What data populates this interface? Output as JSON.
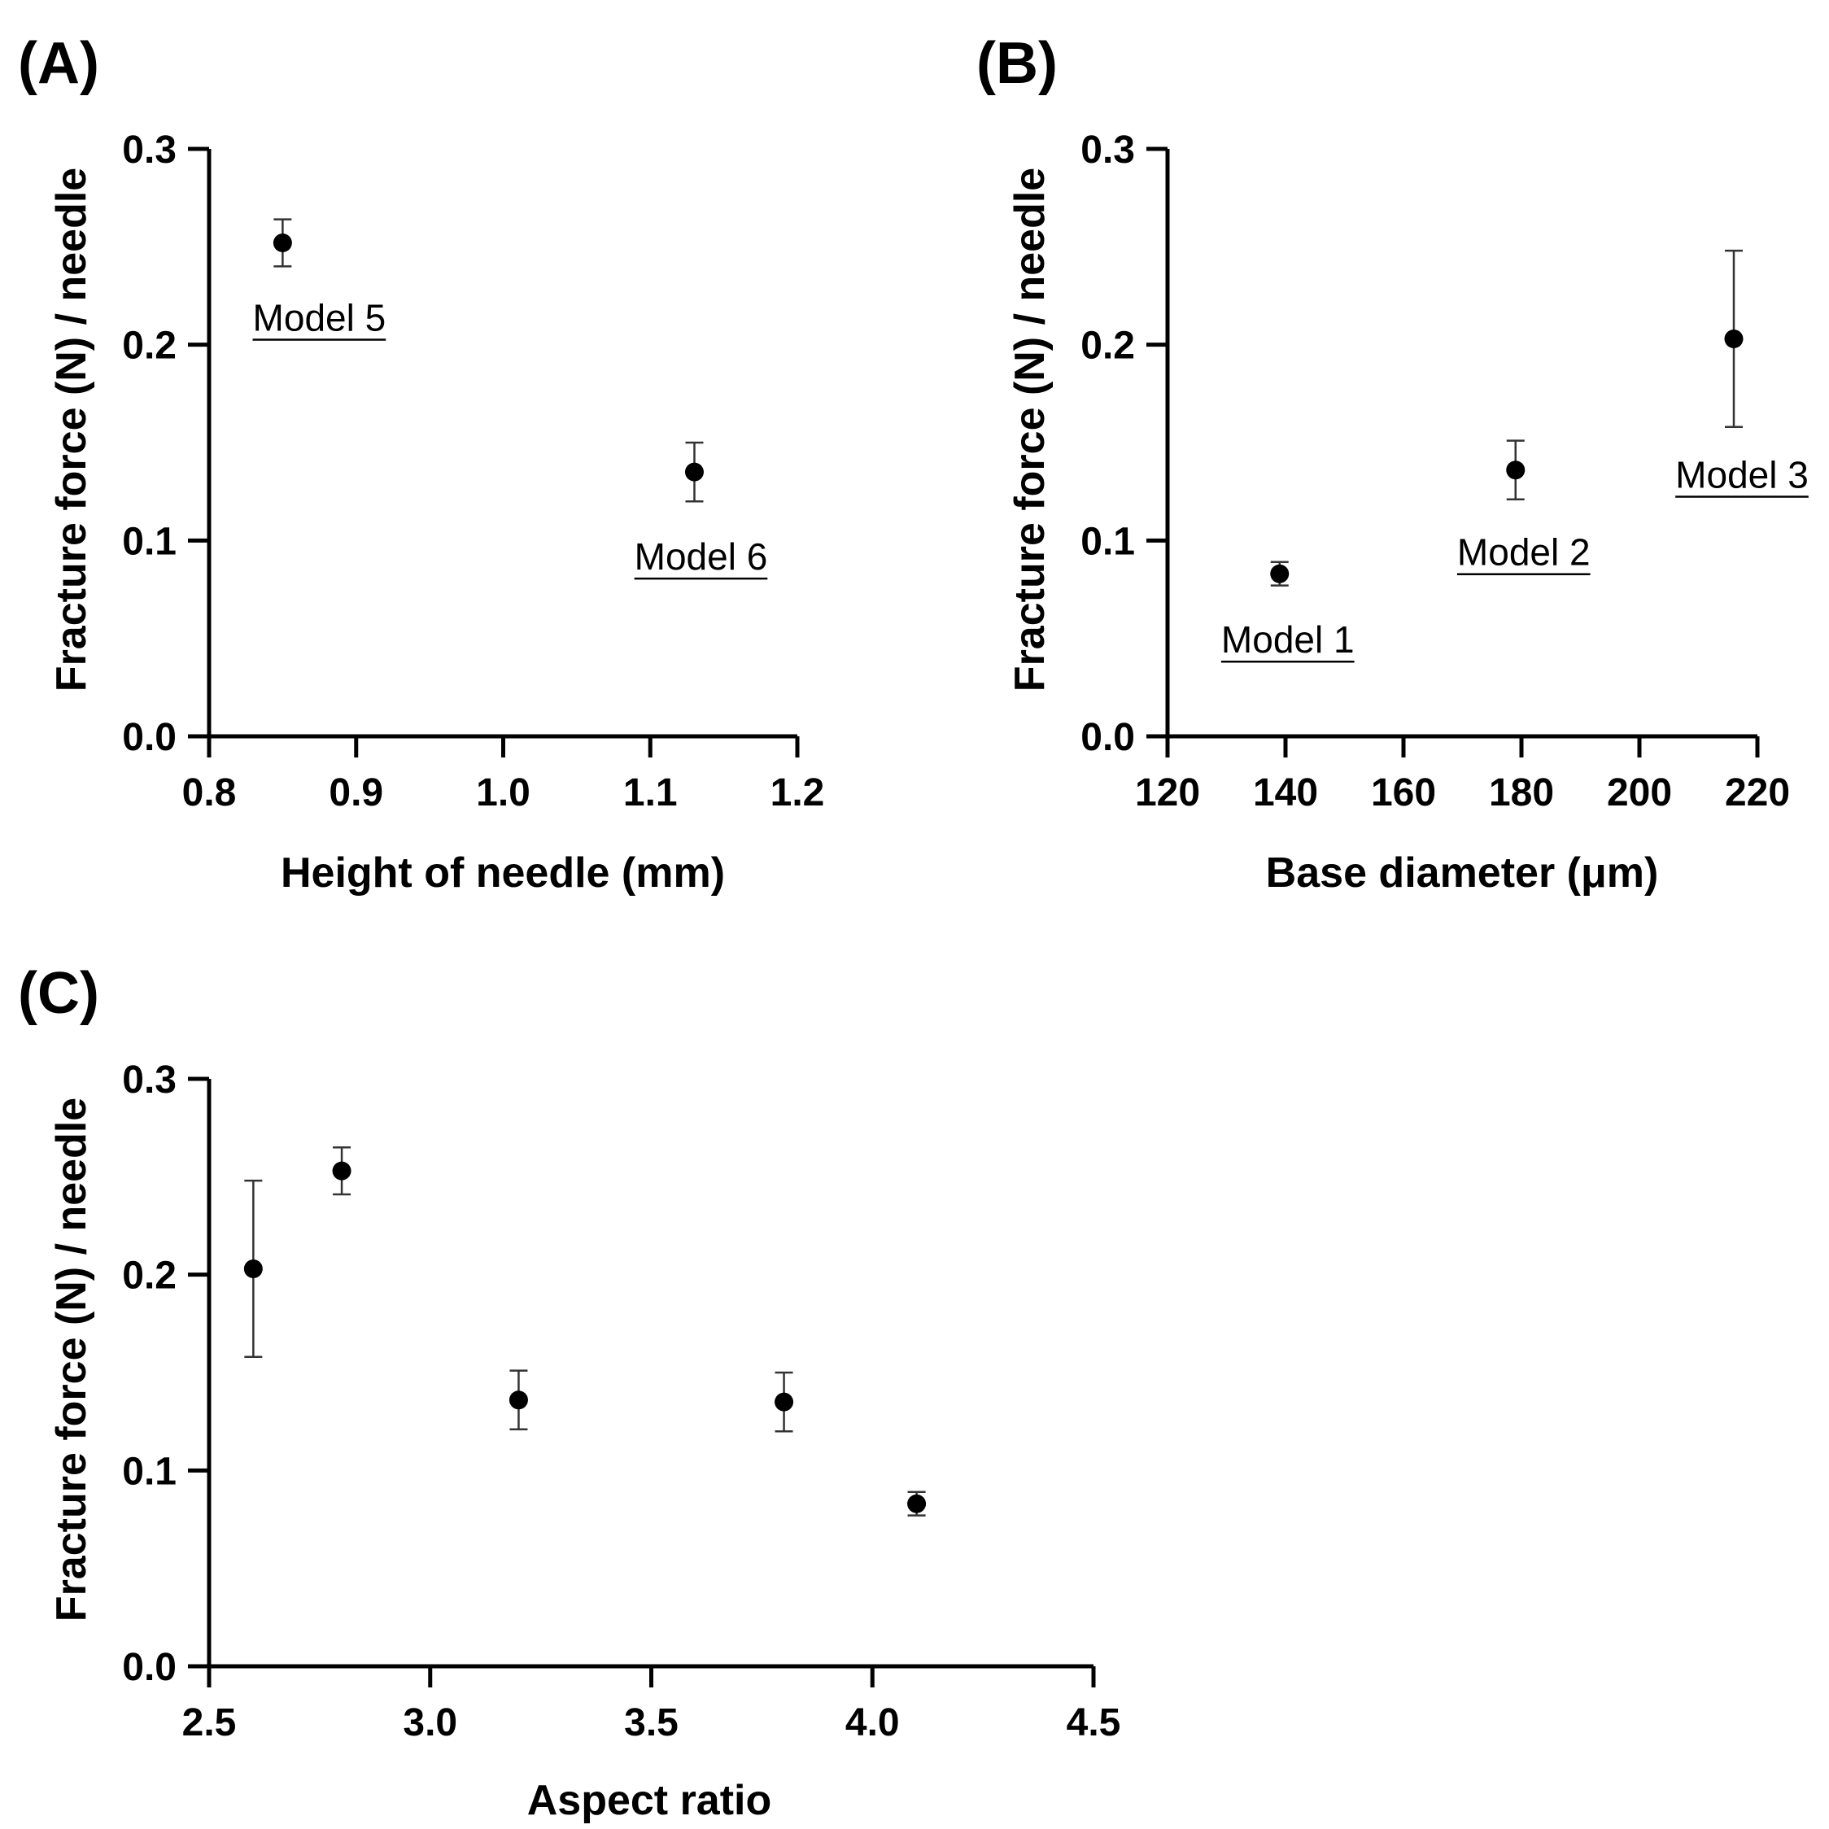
{
  "chart_data": [
    {
      "panel": "(A)",
      "type": "scatter",
      "xlabel": "Height of needle (mm)",
      "ylabel": "Fracture force (N) / needle",
      "xlim": [
        0.8,
        1.2
      ],
      "ylim": [
        0.0,
        0.3
      ],
      "xticks": [
        "0.8",
        "0.9",
        "1.0",
        "1.1",
        "1.2"
      ],
      "yticks": [
        "0.0",
        "0.1",
        "0.2",
        "0.3"
      ],
      "points": [
        {
          "x": 0.85,
          "y": 0.252,
          "err": 0.012,
          "label": "Model 5"
        },
        {
          "x": 1.13,
          "y": 0.135,
          "err": 0.015,
          "label": "Model 6"
        }
      ]
    },
    {
      "panel": "(B)",
      "type": "scatter",
      "xlabel": "Base diameter (μm)",
      "ylabel": "Fracture force (N) / needle",
      "xlim": [
        120,
        220
      ],
      "ylim": [
        0.0,
        0.3
      ],
      "xticks": [
        "120",
        "140",
        "160",
        "180",
        "200",
        "220"
      ],
      "yticks": [
        "0.0",
        "0.1",
        "0.2",
        "0.3"
      ],
      "points": [
        {
          "x": 139,
          "y": 0.083,
          "err": 0.006,
          "label": "Model 1"
        },
        {
          "x": 179,
          "y": 0.136,
          "err": 0.015,
          "label": "Model 2"
        },
        {
          "x": 216,
          "y": 0.203,
          "err": 0.045,
          "label": "Model 3"
        }
      ]
    },
    {
      "panel": "(C)",
      "type": "scatter",
      "xlabel": "Aspect ratio",
      "ylabel": "Fracture force (N) / needle",
      "xlim": [
        2.5,
        4.5
      ],
      "ylim": [
        0.0,
        0.3
      ],
      "xticks": [
        "2.5",
        "3.0",
        "3.5",
        "4.0",
        "4.5"
      ],
      "yticks": [
        "0.0",
        "0.1",
        "0.2",
        "0.3"
      ],
      "points": [
        {
          "x": 2.6,
          "y": 0.203,
          "err": 0.045
        },
        {
          "x": 2.8,
          "y": 0.253,
          "err": 0.012
        },
        {
          "x": 3.2,
          "y": 0.136,
          "err": 0.015
        },
        {
          "x": 3.8,
          "y": 0.135,
          "err": 0.015
        },
        {
          "x": 4.1,
          "y": 0.083,
          "err": 0.006
        }
      ]
    }
  ]
}
